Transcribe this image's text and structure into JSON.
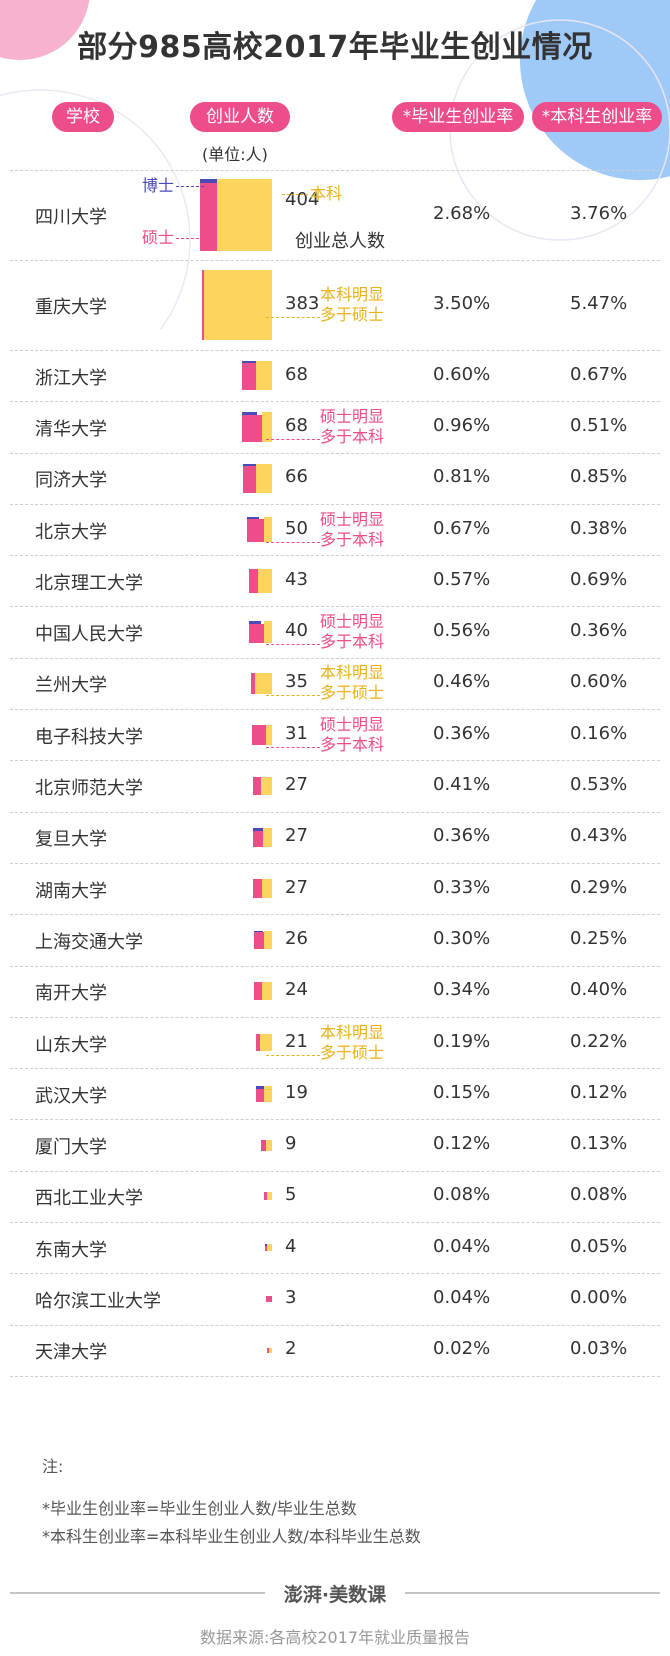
{
  "title": "部分985高校2017年毕业生创业情况",
  "headers": {
    "school": "学校",
    "count": "创业人数",
    "unit": "(单位:人)",
    "rate_grad": "*毕业生创业率",
    "rate_undergrad": "*本科生创业率"
  },
  "legend": {
    "phd": "博士",
    "master": "硕士",
    "bachelor": "本科",
    "total_label": "创业总人数"
  },
  "annotations": {
    "bachelor_more": [
      "本科明显",
      "多于硕士"
    ],
    "master_more": [
      "硕士明显",
      "多于本科"
    ]
  },
  "colors": {
    "phd": "#4a4ab8",
    "master": "#ee4d8b",
    "bachelor": "#fdd55e",
    "header_pill": "#ee4d8b",
    "ann_bachelor": "#e8b21a",
    "ann_master": "#ee4d8b"
  },
  "chart_data": {
    "type": "table",
    "note": "每校创业人数按博士/硕士/本科构成的方块面积示意",
    "rows": [
      {
        "school": "四川大学",
        "total": 404,
        "rate_grad": "2.68%",
        "rate_undergrad": "3.76%",
        "phd_frac": 0.06,
        "master_frac": 0.22,
        "bachelor_frac": 0.72
      },
      {
        "school": "重庆大学",
        "total": 383,
        "rate_grad": "3.50%",
        "rate_undergrad": "5.47%",
        "phd_frac": 0.0,
        "master_frac": 0.03,
        "bachelor_frac": 0.97
      },
      {
        "school": "浙江大学",
        "total": 68,
        "rate_grad": "0.60%",
        "rate_undergrad": "0.67%",
        "phd_frac": 0.08,
        "master_frac": 0.42,
        "bachelor_frac": 0.5
      },
      {
        "school": "清华大学",
        "total": 68,
        "rate_grad": "0.96%",
        "rate_undergrad": "0.51%",
        "phd_frac": 0.1,
        "master_frac": 0.6,
        "bachelor_frac": 0.3
      },
      {
        "school": "同济大学",
        "total": 66,
        "rate_grad": "0.81%",
        "rate_undergrad": "0.85%",
        "phd_frac": 0.08,
        "master_frac": 0.42,
        "bachelor_frac": 0.5
      },
      {
        "school": "北京大学",
        "total": 50,
        "rate_grad": "0.67%",
        "rate_undergrad": "0.38%",
        "phd_frac": 0.1,
        "master_frac": 0.62,
        "bachelor_frac": 0.28
      },
      {
        "school": "北京理工大学",
        "total": 43,
        "rate_grad": "0.57%",
        "rate_undergrad": "0.69%",
        "phd_frac": 0.0,
        "master_frac": 0.4,
        "bachelor_frac": 0.6
      },
      {
        "school": "中国人民大学",
        "total": 40,
        "rate_grad": "0.56%",
        "rate_undergrad": "0.36%",
        "phd_frac": 0.12,
        "master_frac": 0.55,
        "bachelor_frac": 0.33
      },
      {
        "school": "兰州大学",
        "total": 35,
        "rate_grad": "0.46%",
        "rate_undergrad": "0.60%",
        "phd_frac": 0.0,
        "master_frac": 0.2,
        "bachelor_frac": 0.8
      },
      {
        "school": "电子科技大学",
        "total": 31,
        "rate_grad": "0.36%",
        "rate_undergrad": "0.16%",
        "phd_frac": 0.0,
        "master_frac": 0.7,
        "bachelor_frac": 0.3
      },
      {
        "school": "北京师范大学",
        "total": 27,
        "rate_grad": "0.41%",
        "rate_undergrad": "0.53%",
        "phd_frac": 0.0,
        "master_frac": 0.4,
        "bachelor_frac": 0.6
      },
      {
        "school": "复旦大学",
        "total": 27,
        "rate_grad": "0.36%",
        "rate_undergrad": "0.43%",
        "phd_frac": 0.18,
        "master_frac": 0.42,
        "bachelor_frac": 0.4
      },
      {
        "school": "湖南大学",
        "total": 27,
        "rate_grad": "0.33%",
        "rate_undergrad": "0.29%",
        "phd_frac": 0.0,
        "master_frac": 0.45,
        "bachelor_frac": 0.55
      },
      {
        "school": "上海交通大学",
        "total": 26,
        "rate_grad": "0.30%",
        "rate_undergrad": "0.25%",
        "phd_frac": 0.06,
        "master_frac": 0.55,
        "bachelor_frac": 0.39
      },
      {
        "school": "南开大学",
        "total": 24,
        "rate_grad": "0.34%",
        "rate_undergrad": "0.40%",
        "phd_frac": 0.0,
        "master_frac": 0.45,
        "bachelor_frac": 0.55
      },
      {
        "school": "山东大学",
        "total": 21,
        "rate_grad": "0.19%",
        "rate_undergrad": "0.22%",
        "phd_frac": 0.0,
        "master_frac": 0.25,
        "bachelor_frac": 0.75
      },
      {
        "school": "武汉大学",
        "total": 19,
        "rate_grad": "0.15%",
        "rate_undergrad": "0.12%",
        "phd_frac": 0.22,
        "master_frac": 0.38,
        "bachelor_frac": 0.4
      },
      {
        "school": "厦门大学",
        "total": 9,
        "rate_grad": "0.12%",
        "rate_undergrad": "0.13%",
        "phd_frac": 0.0,
        "master_frac": 0.4,
        "bachelor_frac": 0.6
      },
      {
        "school": "西北工业大学",
        "total": 5,
        "rate_grad": "0.08%",
        "rate_undergrad": "0.08%",
        "phd_frac": 0.0,
        "master_frac": 0.4,
        "bachelor_frac": 0.6
      },
      {
        "school": "东南大学",
        "total": 4,
        "rate_grad": "0.04%",
        "rate_undergrad": "0.05%",
        "phd_frac": 0.25,
        "master_frac": 0.25,
        "bachelor_frac": 0.5
      },
      {
        "school": "哈尔滨工业大学",
        "total": 3,
        "rate_grad": "0.04%",
        "rate_undergrad": "0.00%",
        "phd_frac": 0.0,
        "master_frac": 1.0,
        "bachelor_frac": 0.0
      },
      {
        "school": "天津大学",
        "total": 2,
        "rate_grad": "0.02%",
        "rate_undergrad": "0.03%",
        "phd_frac": 0.0,
        "master_frac": 0.5,
        "bachelor_frac": 0.5
      }
    ],
    "row_annotations": [
      {
        "school": "重庆大学",
        "type": "bachelor_more"
      },
      {
        "school": "清华大学",
        "type": "master_more"
      },
      {
        "school": "北京大学",
        "type": "master_more"
      },
      {
        "school": "中国人民大学",
        "type": "master_more"
      },
      {
        "school": "兰州大学",
        "type": "bachelor_more"
      },
      {
        "school": "电子科技大学",
        "type": "master_more"
      },
      {
        "school": "山东大学",
        "type": "bachelor_more"
      }
    ]
  },
  "notes": {
    "label": "注:",
    "line1": "*毕业生创业率=毕业生创业人数/毕业生总数",
    "line2": "*本科生创业率=本科毕业生创业人数/本科毕业生总数"
  },
  "brand": {
    "name_left": "澎湃",
    "name_sep": "·",
    "name_right": "美数课"
  },
  "source": "数据来源:各高校2017年就业质量报告"
}
